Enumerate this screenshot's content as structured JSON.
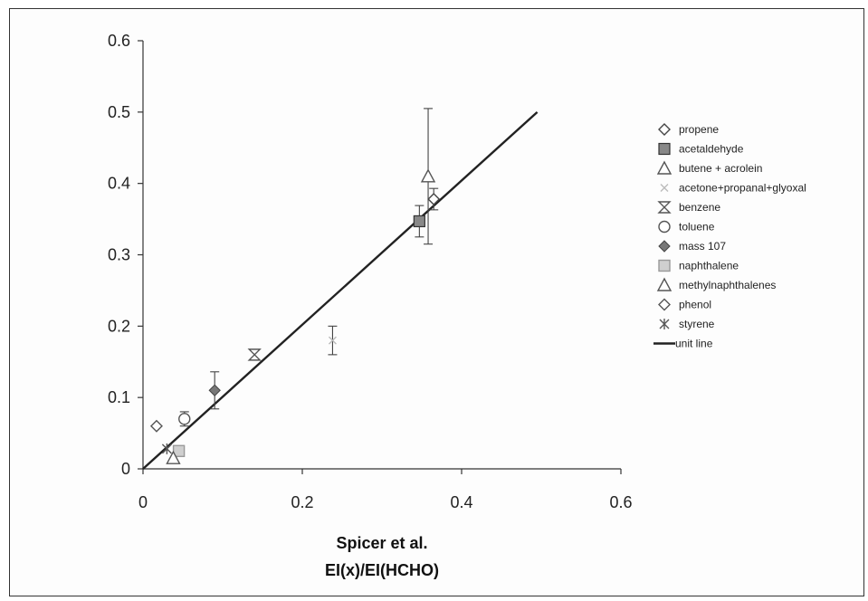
{
  "chart_data": {
    "type": "scatter",
    "title": "",
    "xlabel_line1": "Spicer et al.",
    "xlabel_line2": "EI(x)/EI(HCHO)",
    "ylabel": "",
    "xlim": [
      0,
      0.6
    ],
    "ylim": [
      0,
      0.6
    ],
    "x_ticks": [
      "0",
      "0.2",
      "0.4",
      "0.6"
    ],
    "y_ticks": [
      "0",
      "0.1",
      "0.2",
      "0.3",
      "0.4",
      "0.5",
      "0.6"
    ],
    "grid": false,
    "legend_position": "right",
    "series": [
      {
        "name": "propene",
        "marker": "diamond-open",
        "color": "#444444",
        "x": 0.365,
        "y": 0.378,
        "err": 0.015
      },
      {
        "name": "acetaldehyde",
        "marker": "square-filled",
        "color": "#888888",
        "x": 0.347,
        "y": 0.347,
        "err": 0.022
      },
      {
        "name": "butene + acrolein",
        "marker": "triangle-open",
        "color": "#555555",
        "x": 0.358,
        "y": 0.41,
        "err": 0.095
      },
      {
        "name": "acetone+propanal+glyoxal",
        "marker": "x-light",
        "color": "#bbbbbb",
        "x": 0.238,
        "y": 0.18,
        "err": 0.02
      },
      {
        "name": "benzene",
        "marker": "hourglass",
        "color": "#555555",
        "x": 0.14,
        "y": 0.16,
        "err": 0.0
      },
      {
        "name": "toluene",
        "marker": "circle-open",
        "color": "#555555",
        "x": 0.052,
        "y": 0.07,
        "err": 0.01
      },
      {
        "name": "mass 107",
        "marker": "diamond-filled",
        "color": "#777777",
        "x": 0.09,
        "y": 0.11,
        "err": 0.026
      },
      {
        "name": "naphthalene",
        "marker": "square-light",
        "color": "#999999",
        "x": 0.045,
        "y": 0.025,
        "err": 0.0
      },
      {
        "name": "methylnaphthalenes",
        "marker": "triangle-open",
        "color": "#555555",
        "x": 0.038,
        "y": 0.015,
        "err": 0.0
      },
      {
        "name": "phenol",
        "marker": "diamond-open",
        "color": "#555555",
        "x": 0.017,
        "y": 0.06,
        "err": 0.0
      },
      {
        "name": "styrene",
        "marker": "asterisk",
        "color": "#555555",
        "x": 0.03,
        "y": 0.028,
        "err": 0.0
      }
    ],
    "line": {
      "name": "unit line",
      "x": [
        0,
        0.495
      ],
      "y": [
        0,
        0.5
      ],
      "color": "#222222"
    }
  }
}
